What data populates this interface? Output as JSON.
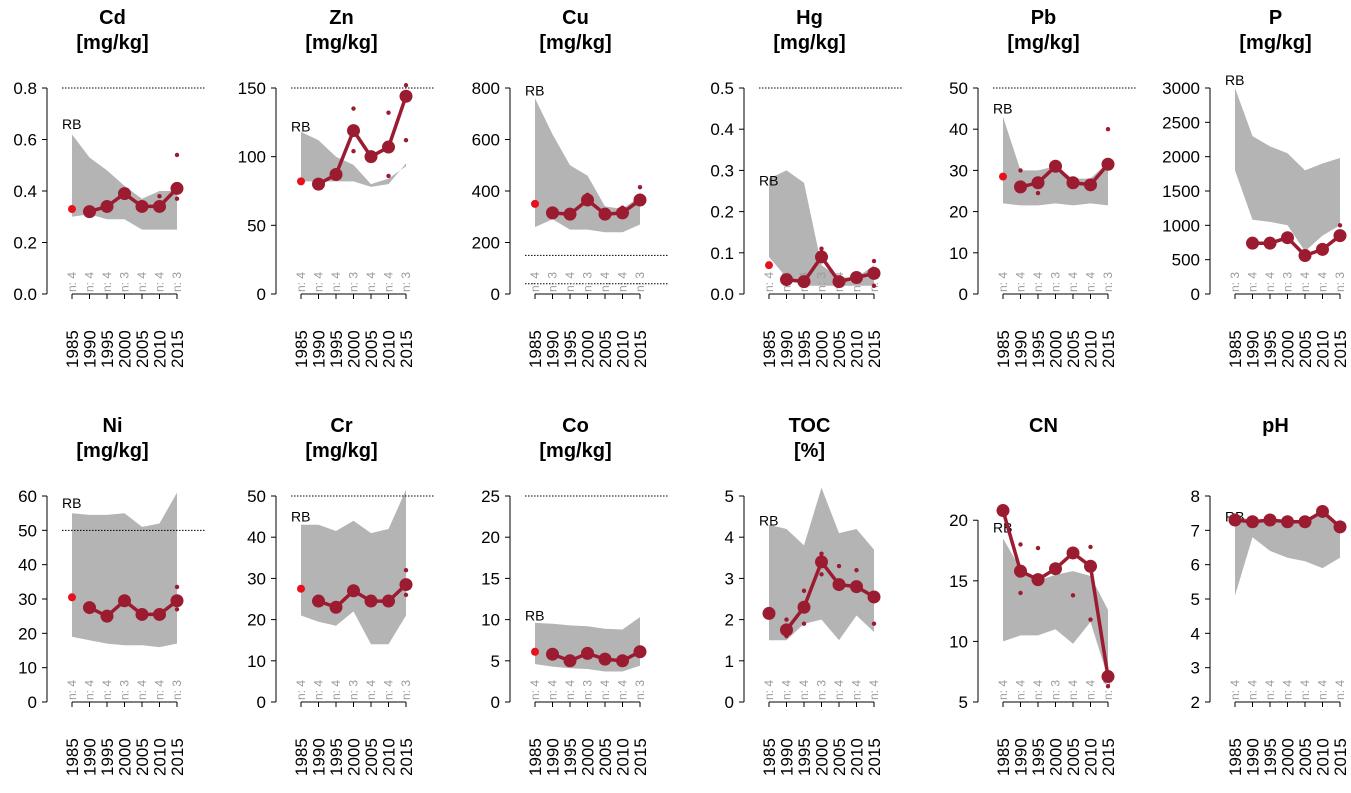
{
  "colors": {
    "band": "#b4b4b4",
    "series": "#9b1b30",
    "start_point": "#e8101c",
    "limit_line": "#000000"
  },
  "chart_data": [
    {
      "type": "line",
      "title": "Cd",
      "unit": "[mg/kg]",
      "ylim": [
        0,
        0.8
      ],
      "yticks": [
        "0.0",
        "0.2",
        "0.4",
        "0.6",
        "0.8"
      ],
      "yticks_num": [
        0,
        0.2,
        0.4,
        0.6,
        0.8
      ],
      "categories": [
        "1985",
        "1990",
        "1995",
        "2000",
        "2005",
        "2010",
        "2015"
      ],
      "n_labels": [
        "n: 4",
        "n: 4",
        "n: 4",
        "n: 3",
        "n: 4",
        "n: 4",
        "n: 3"
      ],
      "band_upper": [
        0.62,
        0.53,
        0.48,
        0.42,
        0.37,
        0.4,
        0.4
      ],
      "band_lower": [
        0.3,
        0.31,
        0.29,
        0.29,
        0.25,
        0.25,
        0.25
      ],
      "means": [
        0.33,
        0.32,
        0.34,
        0.39,
        0.34,
        0.34,
        0.41
      ],
      "points": [
        [
          5,
          0.38
        ],
        [
          6,
          0.54
        ],
        [
          6,
          0.37
        ]
      ],
      "rb_label": "RB",
      "rb_value": 0.66,
      "hlines": [
        0.8
      ]
    },
    {
      "type": "line",
      "title": "Zn",
      "unit": "[mg/kg]",
      "ylim": [
        0,
        150
      ],
      "yticks": [
        "0",
        "50",
        "100",
        "150"
      ],
      "yticks_num": [
        0,
        50,
        100,
        150
      ],
      "categories": [
        "1985",
        "1990",
        "1995",
        "2000",
        "2005",
        "2010",
        "2015"
      ],
      "n_labels": [
        "n: 4",
        "n: 4",
        "n: 4",
        "n: 3",
        "n: 4",
        "n: 4",
        "n: 3"
      ],
      "band_upper": [
        118,
        112,
        100,
        94,
        80,
        84,
        93
      ],
      "band_lower": [
        82,
        82,
        82,
        82,
        78,
        80,
        95
      ],
      "means": [
        82,
        80,
        87,
        119,
        100,
        107,
        144
      ],
      "points": [
        [
          3,
          135
        ],
        [
          3,
          104
        ],
        [
          5,
          132
        ],
        [
          5,
          86
        ],
        [
          6,
          152
        ],
        [
          6,
          112
        ]
      ],
      "rb_label": "RB",
      "rb_value": 122,
      "hlines": [
        150
      ]
    },
    {
      "type": "line",
      "title": "Cu",
      "unit": "[mg/kg]",
      "ylim": [
        0,
        800
      ],
      "yticks": [
        "0",
        "200",
        "400",
        "600",
        "800"
      ],
      "yticks_num": [
        0,
        200,
        400,
        600,
        800
      ],
      "categories": [
        "1985",
        "1990",
        "1995",
        "2000",
        "2005",
        "2010",
        "2015"
      ],
      "n_labels": [
        "n: 4",
        "n: 3",
        "n: 4",
        "n: 3",
        "n: 4",
        "n: 4",
        "n: 3"
      ],
      "band_upper": [
        760,
        620,
        500,
        460,
        340,
        330,
        380
      ],
      "band_lower": [
        260,
        290,
        250,
        250,
        240,
        240,
        270
      ],
      "means": [
        350,
        315,
        310,
        365,
        310,
        315,
        365
      ],
      "points": [
        [
          3,
          385
        ],
        [
          5,
          335
        ],
        [
          6,
          415
        ]
      ],
      "rb_label": "RB",
      "rb_value": 790,
      "hlines": [
        150,
        40
      ]
    },
    {
      "type": "line",
      "title": "Hg",
      "unit": "[mg/kg]",
      "ylim": [
        0,
        0.5
      ],
      "yticks": [
        "0.0",
        "0.1",
        "0.2",
        "0.3",
        "0.4",
        "0.5"
      ],
      "yticks_num": [
        0,
        0.1,
        0.2,
        0.3,
        0.4,
        0.5
      ],
      "categories": [
        "1985",
        "1990",
        "1995",
        "2000",
        "2005",
        "2010",
        "2015"
      ],
      "n_labels": [
        "n: 4",
        "n: 4",
        "n: 4",
        "n: 3",
        "n: 4",
        "n: 4",
        "n: 4"
      ],
      "band_upper": [
        0.28,
        0.3,
        0.27,
        0.07,
        0.04,
        0.04,
        0.07
      ],
      "band_lower": [
        0.09,
        0.04,
        0.02,
        0.02,
        0.02,
        0.02,
        0.02
      ],
      "means": [
        0.07,
        0.035,
        0.03,
        0.09,
        0.03,
        0.04,
        0.05
      ],
      "points": [
        [
          3,
          0.11
        ],
        [
          6,
          0.08
        ],
        [
          6,
          0.02
        ]
      ],
      "rb_label": "RB",
      "rb_value": 0.275,
      "hlines": [
        0.5
      ]
    },
    {
      "type": "line",
      "title": "Pb",
      "unit": "[mg/kg]",
      "ylim": [
        0,
        50
      ],
      "yticks": [
        "0",
        "10",
        "20",
        "30",
        "40",
        "50"
      ],
      "yticks_num": [
        0,
        10,
        20,
        30,
        40,
        50
      ],
      "categories": [
        "1985",
        "1990",
        "1995",
        "2000",
        "2005",
        "2010",
        "2015"
      ],
      "n_labels": [
        "n: 4",
        "n: 4",
        "n: 4",
        "n: 3",
        "n: 4",
        "n: 4",
        "n: 3"
      ],
      "band_upper": [
        43,
        30,
        30,
        31,
        28,
        28,
        32
      ],
      "band_lower": [
        22,
        21.5,
        21.5,
        22,
        21.5,
        22,
        21.5
      ],
      "means": [
        28.5,
        26,
        27,
        31,
        27,
        26.5,
        31.5
      ],
      "points": [
        [
          1,
          30
        ],
        [
          2,
          24.5
        ],
        [
          6,
          40
        ]
      ],
      "rb_label": "RB",
      "rb_value": 45,
      "hlines": [
        50
      ]
    },
    {
      "type": "line",
      "title": "P",
      "unit": "[mg/kg]",
      "ylim": [
        0,
        3000
      ],
      "yticks": [
        "0",
        "500",
        "1000",
        "1500",
        "2000",
        "2500",
        "3000"
      ],
      "yticks_num": [
        0,
        500,
        1000,
        1500,
        2000,
        2500,
        3000
      ],
      "categories": [
        "1985",
        "1990",
        "1995",
        "2000",
        "2005",
        "2010",
        "2015"
      ],
      "n_labels": [
        "n: 3",
        "n: 4",
        "n: 4",
        "n: 3",
        "n: 4",
        "n: 4",
        "n: 3"
      ],
      "band_upper": [
        3000,
        2300,
        2150,
        2050,
        1800,
        1900,
        1980
      ],
      "band_lower": [
        1800,
        1080,
        1050,
        1000,
        620,
        850,
        1000
      ],
      "means": [
        null,
        740,
        740,
        820,
        560,
        650,
        850
      ],
      "points": [
        [
          6,
          1000
        ]
      ],
      "rb_label": "RB",
      "rb_value": 3120,
      "hlines": []
    },
    {
      "type": "line",
      "title": "Ni",
      "unit": "[mg/kg]",
      "ylim": [
        0,
        60
      ],
      "yticks": [
        "0",
        "10",
        "20",
        "30",
        "40",
        "50",
        "60"
      ],
      "yticks_num": [
        0,
        10,
        20,
        30,
        40,
        50,
        60
      ],
      "categories": [
        "1985",
        "1990",
        "1995",
        "2000",
        "2005",
        "2010",
        "2015"
      ],
      "n_labels": [
        "n: 4",
        "n: 4",
        "n: 4",
        "n: 3",
        "n: 4",
        "n: 4",
        "n: 3"
      ],
      "band_upper": [
        55,
        54.5,
        54.5,
        55,
        51,
        52,
        61
      ],
      "band_lower": [
        19,
        18,
        17,
        16.5,
        16.5,
        16,
        17
      ],
      "means": [
        30.5,
        27.5,
        25,
        29.5,
        25.5,
        25.5,
        29.5
      ],
      "points": [
        [
          6,
          33.5
        ],
        [
          6,
          27
        ]
      ],
      "rb_label": "RB",
      "rb_value": 58,
      "hlines": [
        50
      ]
    },
    {
      "type": "line",
      "title": "Cr",
      "unit": "[mg/kg]",
      "ylim": [
        0,
        50
      ],
      "yticks": [
        "0",
        "10",
        "20",
        "30",
        "40",
        "50"
      ],
      "yticks_num": [
        0,
        10,
        20,
        30,
        40,
        50
      ],
      "categories": [
        "1985",
        "1990",
        "1995",
        "2000",
        "2005",
        "2010",
        "2015"
      ],
      "n_labels": [
        "n: 4",
        "n: 4",
        "n: 4",
        "n: 3",
        "n: 4",
        "n: 4",
        "n: 3"
      ],
      "band_upper": [
        43,
        43,
        41.5,
        44,
        41,
        42,
        51.5
      ],
      "band_lower": [
        21,
        19.5,
        18.5,
        22,
        14,
        14,
        21
      ],
      "means": [
        27.5,
        24.5,
        23,
        27,
        24.5,
        24.5,
        28.5
      ],
      "points": [
        [
          6,
          32
        ],
        [
          6,
          26
        ]
      ],
      "rb_label": "RB",
      "rb_value": 45,
      "hlines": [
        50
      ]
    },
    {
      "type": "line",
      "title": "Co",
      "unit": "[mg/kg]",
      "ylim": [
        0,
        25
      ],
      "yticks": [
        "0",
        "5",
        "10",
        "15",
        "20",
        "25"
      ],
      "yticks_num": [
        0,
        5,
        10,
        15,
        20,
        25
      ],
      "categories": [
        "1985",
        "1990",
        "1995",
        "2000",
        "2005",
        "2010",
        "2015"
      ],
      "n_labels": [
        "n: 4",
        "n: 4",
        "n: 4",
        "n: 3",
        "n: 4",
        "n: 4",
        "n: 3"
      ],
      "band_upper": [
        9.6,
        9.5,
        9.3,
        9.2,
        8.9,
        8.8,
        10.3
      ],
      "band_lower": [
        4.6,
        4.3,
        4.1,
        4.0,
        3.7,
        3.7,
        4.4
      ],
      "means": [
        6.1,
        5.8,
        5.0,
        5.9,
        5.2,
        5.0,
        6.1
      ],
      "points": [],
      "rb_label": "RB",
      "rb_value": 10.5,
      "hlines": [
        25
      ]
    },
    {
      "type": "line",
      "title": "TOC",
      "unit": "[%]",
      "ylim": [
        0,
        5
      ],
      "yticks": [
        "0",
        "1",
        "2",
        "3",
        "4",
        "5"
      ],
      "yticks_num": [
        0,
        1,
        2,
        3,
        4,
        5
      ],
      "categories": [
        "1985",
        "1990",
        "1995",
        "2000",
        "2005",
        "2010",
        "2015"
      ],
      "n_labels": [
        "n: 4",
        "n: 4",
        "n: 4",
        "n: 3",
        "n: 4",
        "n: 4",
        "n: 4"
      ],
      "band_upper": [
        4.3,
        4.2,
        3.8,
        5.2,
        4.1,
        4.2,
        3.7
      ],
      "band_lower": [
        1.5,
        1.5,
        1.9,
        2.0,
        1.5,
        2.1,
        1.7
      ],
      "means": [
        2.15,
        1.75,
        2.3,
        3.4,
        2.85,
        2.8,
        2.55
      ],
      "points": [
        [
          1,
          1.6
        ],
        [
          1,
          2.0
        ],
        [
          2,
          2.7
        ],
        [
          2,
          1.9
        ],
        [
          3,
          3.6
        ],
        [
          3,
          3.1
        ],
        [
          4,
          3.3
        ],
        [
          5,
          3.2
        ],
        [
          6,
          1.9
        ]
      ],
      "rb_label": "RB",
      "rb_value": 4.4,
      "hlines": []
    },
    {
      "type": "line",
      "title": "CN",
      "unit": "",
      "ylim": [
        5,
        22
      ],
      "yticks": [
        "5",
        "10",
        "15",
        "20"
      ],
      "yticks_num": [
        5,
        10,
        15,
        20
      ],
      "categories": [
        "1985",
        "1990",
        "1995",
        "2000",
        "2005",
        "2010",
        "2015"
      ],
      "n_labels": [
        "n: 4",
        "n: 4",
        "n: 4",
        "n: 3",
        "n: 4",
        "n: 4",
        "n: 4"
      ],
      "band_upper": [
        18.5,
        16,
        15,
        15.5,
        15.8,
        15.4,
        12.6
      ],
      "band_lower": [
        10,
        10.5,
        10.5,
        11,
        9.8,
        11.6,
        7
      ],
      "means": [
        20.8,
        15.8,
        15.1,
        16.0,
        17.3,
        16.2,
        7.1
      ],
      "points": [
        [
          1,
          14
        ],
        [
          1,
          18
        ],
        [
          2,
          17.7
        ],
        [
          4,
          13.8
        ],
        [
          5,
          17.8
        ],
        [
          5,
          11.8
        ],
        [
          6,
          6.3
        ]
      ],
      "rb_label": "RB",
      "rb_value": 19.4,
      "hlines": []
    },
    {
      "type": "line",
      "title": "pH",
      "unit": "",
      "ylim": [
        2,
        8
      ],
      "yticks": [
        "2",
        "3",
        "4",
        "5",
        "6",
        "7",
        "8"
      ],
      "yticks_num": [
        2,
        3,
        4,
        5,
        6,
        7,
        8
      ],
      "categories": [
        "1985",
        "1990",
        "1995",
        "2000",
        "2005",
        "2010",
        "2015"
      ],
      "n_labels": [
        "n: 4",
        "n: 4",
        "n: 4",
        "n: 4",
        "n: 4",
        "n: 4",
        "n: 4"
      ],
      "band_upper": [
        7.4,
        7.3,
        7.3,
        7.3,
        7.3,
        7.45,
        7.2
      ],
      "band_lower": [
        5.1,
        6.8,
        6.4,
        6.2,
        6.1,
        5.9,
        6.2
      ],
      "means": [
        7.3,
        7.25,
        7.3,
        7.25,
        7.25,
        7.55,
        7.1
      ],
      "points": [],
      "rb_label": "RB",
      "rb_value": 7.4,
      "hlines": []
    }
  ]
}
